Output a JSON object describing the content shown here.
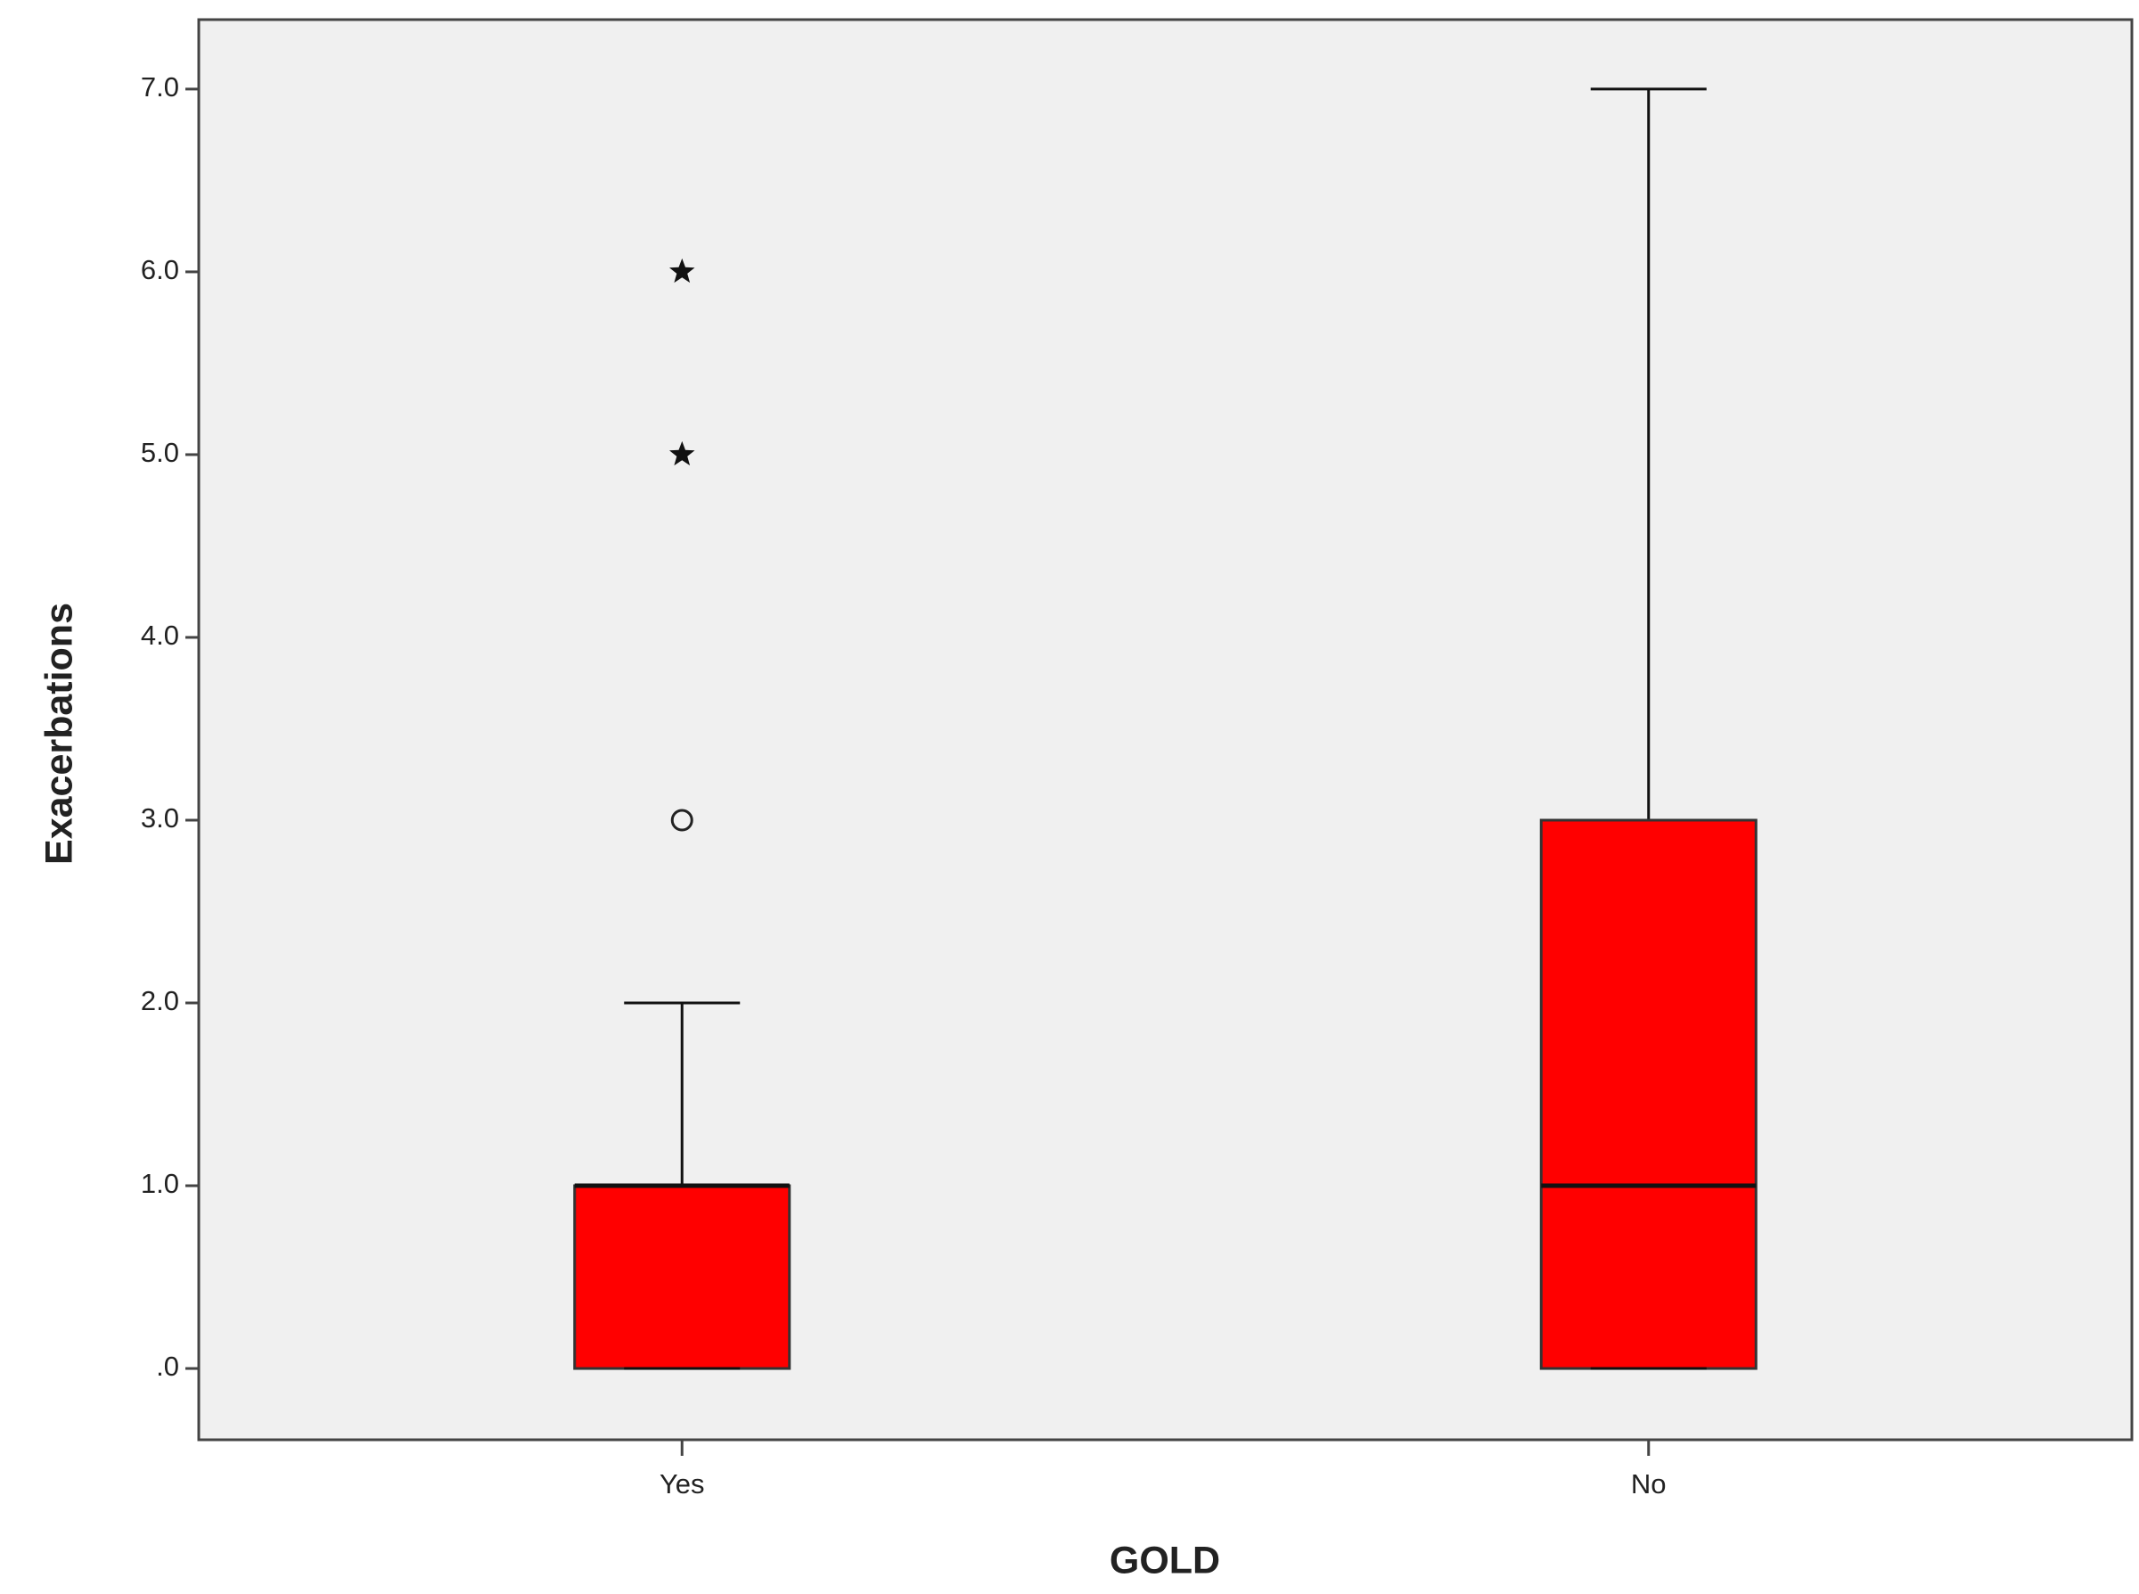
{
  "chart_data": {
    "type": "box",
    "xlabel": "GOLD",
    "ylabel": "Exacerbations",
    "categories": [
      "Yes",
      "No"
    ],
    "boxes": [
      {
        "min": 0,
        "q1": 0,
        "median": 1,
        "q3": 1,
        "max": 2,
        "outliers": [
          3,
          5,
          6
        ],
        "outlier_markers": [
          "circle",
          "star",
          "star"
        ]
      },
      {
        "min": 0,
        "q1": 0,
        "median": 1,
        "q3": 3,
        "max": 7,
        "outliers": [],
        "outlier_markers": []
      }
    ],
    "color": "#ff0000",
    "background": "#f0f0f0",
    "ylim": [
      -0.39,
      7.38
    ],
    "yticks": [
      {
        "value": 0,
        "label": ".0"
      },
      {
        "value": 1,
        "label": "1.0"
      },
      {
        "value": 2,
        "label": "2.0"
      },
      {
        "value": 3,
        "label": "3.0"
      },
      {
        "value": 4,
        "label": "4.0"
      },
      {
        "value": 5,
        "label": "5.0"
      },
      {
        "value": 6,
        "label": "6.0"
      },
      {
        "value": 7,
        "label": "7.0"
      }
    ],
    "grid": false
  }
}
